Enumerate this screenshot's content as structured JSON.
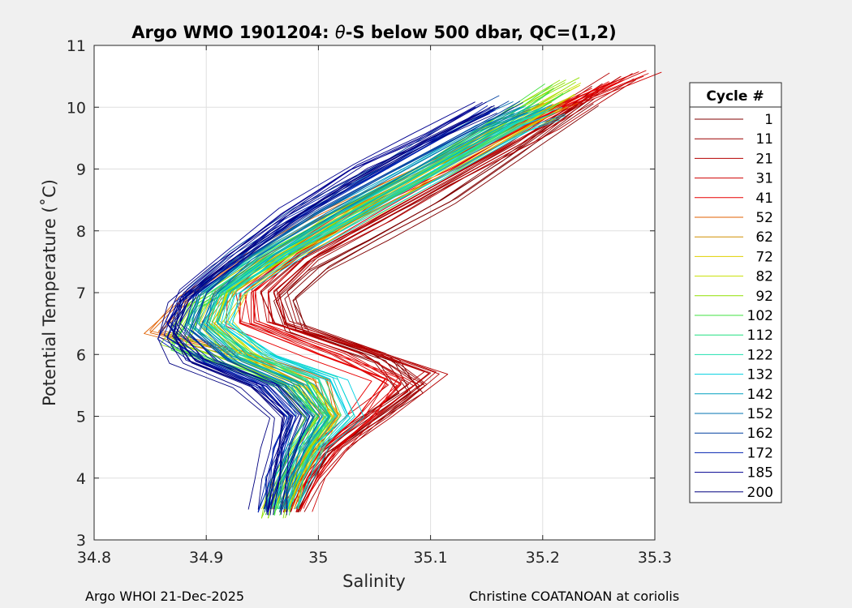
{
  "chart_data": {
    "type": "line",
    "title_prefix": "Argo WMO 1901204: ",
    "title_theta": "θ",
    "title_suffix": "-S below 500 dbar,  QC=(1,2)",
    "xlabel": "Salinity",
    "ylabel": "Potential Temperature (˚C)",
    "xlim": [
      34.8,
      35.3
    ],
    "ylim": [
      3,
      11
    ],
    "xticks": [
      "34.8",
      "34.9",
      "35",
      "35.1",
      "35.2",
      "35.3"
    ],
    "yticks": [
      "3",
      "4",
      "5",
      "6",
      "7",
      "8",
      "9",
      "10",
      "11"
    ],
    "grid": true,
    "legend_title": "Cycle #",
    "legend_position": "right",
    "series": [
      {
        "name": "1",
        "color": "#800000",
        "values": [
          [
            34.975,
            3.45
          ],
          [
            34.985,
            3.9
          ],
          [
            35.0,
            4.4
          ],
          [
            35.04,
            4.9
          ],
          [
            35.08,
            5.4
          ],
          [
            35.06,
            5.9
          ],
          [
            34.98,
            6.4
          ],
          [
            34.97,
            6.9
          ],
          [
            35.0,
            7.4
          ],
          [
            35.05,
            7.9
          ],
          [
            35.11,
            8.5
          ],
          [
            35.17,
            9.2
          ],
          [
            35.24,
            10.1
          ]
        ]
      },
      {
        "name": "11",
        "color": "#9b0000",
        "values": [
          [
            34.98,
            3.45
          ],
          [
            34.99,
            3.9
          ],
          [
            35.01,
            4.4
          ],
          [
            35.045,
            4.9
          ],
          [
            35.09,
            5.5
          ],
          [
            35.05,
            6.0
          ],
          [
            34.97,
            6.5
          ],
          [
            34.96,
            7.0
          ],
          [
            34.99,
            7.5
          ],
          [
            35.05,
            8.1
          ],
          [
            35.11,
            8.7
          ],
          [
            35.18,
            9.4
          ],
          [
            35.25,
            10.3
          ]
        ]
      },
      {
        "name": "21",
        "color": "#b50000",
        "values": [
          [
            34.975,
            3.5
          ],
          [
            34.99,
            4.0
          ],
          [
            35.015,
            4.5
          ],
          [
            35.05,
            5.0
          ],
          [
            35.1,
            5.7
          ],
          [
            35.04,
            6.1
          ],
          [
            34.96,
            6.5
          ],
          [
            34.955,
            7.0
          ],
          [
            34.99,
            7.6
          ],
          [
            35.05,
            8.2
          ],
          [
            35.12,
            8.9
          ],
          [
            35.2,
            9.7
          ],
          [
            35.27,
            10.5
          ]
        ]
      },
      {
        "name": "31",
        "color": "#d00000",
        "values": [
          [
            34.98,
            3.45
          ],
          [
            34.99,
            4.0
          ],
          [
            35.01,
            4.5
          ],
          [
            35.04,
            5.0
          ],
          [
            35.07,
            5.5
          ],
          [
            35.02,
            6.0
          ],
          [
            34.94,
            6.5
          ],
          [
            34.94,
            7.0
          ],
          [
            34.98,
            7.6
          ],
          [
            35.04,
            8.3
          ],
          [
            35.12,
            9.1
          ],
          [
            35.21,
            9.9
          ],
          [
            35.29,
            10.5
          ]
        ]
      },
      {
        "name": "41",
        "color": "#e80000",
        "values": [
          [
            34.97,
            3.5
          ],
          [
            34.985,
            4.0
          ],
          [
            35.005,
            4.5
          ],
          [
            35.035,
            5.0
          ],
          [
            35.06,
            5.6
          ],
          [
            35.0,
            6.0
          ],
          [
            34.93,
            6.5
          ],
          [
            34.93,
            7.0
          ],
          [
            34.97,
            7.6
          ],
          [
            35.03,
            8.3
          ],
          [
            35.11,
            9.0
          ],
          [
            35.19,
            9.8
          ],
          [
            35.26,
            10.4
          ]
        ]
      },
      {
        "name": "52",
        "color": "#e06000",
        "values": [
          [
            34.97,
            3.5
          ],
          [
            34.975,
            4.0
          ],
          [
            34.99,
            4.5
          ],
          [
            35.01,
            5.0
          ],
          [
            35.0,
            5.6
          ],
          [
            34.93,
            6.0
          ],
          [
            34.85,
            6.35
          ],
          [
            34.88,
            6.9
          ],
          [
            34.93,
            7.5
          ],
          [
            35.0,
            8.2
          ],
          [
            35.08,
            8.9
          ],
          [
            35.16,
            9.6
          ],
          [
            35.22,
            10.1
          ]
        ]
      },
      {
        "name": "62",
        "color": "#d09000",
        "values": [
          [
            34.965,
            3.5
          ],
          [
            34.975,
            4.0
          ],
          [
            34.99,
            4.5
          ],
          [
            35.01,
            5.0
          ],
          [
            34.99,
            5.5
          ],
          [
            34.93,
            6.0
          ],
          [
            34.9,
            6.5
          ],
          [
            34.92,
            7.0
          ],
          [
            34.97,
            7.6
          ],
          [
            35.04,
            8.3
          ],
          [
            35.11,
            9.0
          ],
          [
            35.18,
            9.7
          ],
          [
            35.21,
            10.0
          ]
        ]
      },
      {
        "name": "72",
        "color": "#e0d000",
        "values": [
          [
            34.965,
            3.5
          ],
          [
            34.975,
            4.0
          ],
          [
            34.99,
            4.5
          ],
          [
            35.005,
            5.0
          ],
          [
            34.98,
            5.5
          ],
          [
            34.93,
            6.0
          ],
          [
            34.905,
            6.5
          ],
          [
            34.92,
            7.0
          ],
          [
            34.97,
            7.6
          ],
          [
            35.03,
            8.2
          ],
          [
            35.1,
            8.9
          ],
          [
            35.17,
            9.6
          ],
          [
            35.2,
            9.9
          ]
        ]
      },
      {
        "name": "82",
        "color": "#c8e000",
        "values": [
          [
            34.96,
            3.45
          ],
          [
            34.97,
            4.0
          ],
          [
            34.985,
            4.5
          ],
          [
            35.0,
            5.0
          ],
          [
            34.98,
            5.5
          ],
          [
            34.93,
            6.0
          ],
          [
            34.9,
            6.5
          ],
          [
            34.91,
            7.0
          ],
          [
            34.96,
            7.6
          ],
          [
            35.02,
            8.3
          ],
          [
            35.09,
            9.0
          ],
          [
            35.17,
            9.8
          ],
          [
            35.22,
            10.3
          ]
        ]
      },
      {
        "name": "92",
        "color": "#90e000",
        "values": [
          [
            34.955,
            3.35
          ],
          [
            34.965,
            3.9
          ],
          [
            34.98,
            4.5
          ],
          [
            35.0,
            5.0
          ],
          [
            34.97,
            5.5
          ],
          [
            34.92,
            5.9
          ],
          [
            34.87,
            6.2
          ],
          [
            34.89,
            6.8
          ],
          [
            34.95,
            7.5
          ],
          [
            35.02,
            8.3
          ],
          [
            35.1,
            9.1
          ],
          [
            35.17,
            9.9
          ],
          [
            35.22,
            10.4
          ]
        ]
      },
      {
        "name": "102",
        "color": "#40e040",
        "values": [
          [
            34.96,
            3.4
          ],
          [
            34.97,
            3.9
          ],
          [
            34.985,
            4.5
          ],
          [
            35.0,
            5.0
          ],
          [
            34.97,
            5.5
          ],
          [
            34.91,
            5.85
          ],
          [
            34.87,
            6.1
          ],
          [
            34.89,
            6.8
          ],
          [
            34.95,
            7.5
          ],
          [
            35.03,
            8.3
          ],
          [
            35.1,
            9.0
          ],
          [
            35.17,
            9.8
          ],
          [
            35.21,
            10.3
          ]
        ]
      },
      {
        "name": "112",
        "color": "#20e080",
        "values": [
          [
            34.965,
            3.5
          ],
          [
            34.975,
            4.0
          ],
          [
            34.99,
            4.5
          ],
          [
            35.01,
            5.0
          ],
          [
            34.99,
            5.6
          ],
          [
            34.94,
            6.0
          ],
          [
            34.9,
            6.5
          ],
          [
            34.91,
            7.0
          ],
          [
            34.96,
            7.6
          ],
          [
            35.03,
            8.3
          ],
          [
            35.1,
            9.0
          ],
          [
            35.17,
            9.7
          ],
          [
            35.2,
            10.0
          ]
        ]
      },
      {
        "name": "122",
        "color": "#20e0b0",
        "values": [
          [
            34.965,
            3.5
          ],
          [
            34.975,
            4.0
          ],
          [
            34.99,
            4.5
          ],
          [
            35.015,
            5.0
          ],
          [
            35.0,
            5.6
          ],
          [
            34.94,
            6.0
          ],
          [
            34.905,
            6.5
          ],
          [
            34.915,
            7.0
          ],
          [
            34.96,
            7.6
          ],
          [
            35.03,
            8.3
          ],
          [
            35.1,
            9.0
          ],
          [
            35.17,
            9.7
          ],
          [
            35.2,
            9.9
          ]
        ]
      },
      {
        "name": "132",
        "color": "#00d0e0",
        "values": [
          [
            34.97,
            3.5
          ],
          [
            34.98,
            4.0
          ],
          [
            34.995,
            4.5
          ],
          [
            35.025,
            5.0
          ],
          [
            35.01,
            5.6
          ],
          [
            34.95,
            6.0
          ],
          [
            34.91,
            6.5
          ],
          [
            34.92,
            7.0
          ],
          [
            34.97,
            7.6
          ],
          [
            35.04,
            8.3
          ],
          [
            35.11,
            9.0
          ],
          [
            35.18,
            9.7
          ],
          [
            35.21,
            9.9
          ]
        ]
      },
      {
        "name": "142",
        "color": "#00a0c0",
        "values": [
          [
            34.965,
            3.5
          ],
          [
            34.975,
            4.0
          ],
          [
            34.99,
            4.5
          ],
          [
            35.01,
            5.0
          ],
          [
            34.99,
            5.5
          ],
          [
            34.93,
            5.95
          ],
          [
            34.9,
            6.5
          ],
          [
            34.91,
            7.0
          ],
          [
            34.955,
            7.6
          ],
          [
            35.02,
            8.3
          ],
          [
            35.09,
            9.0
          ],
          [
            35.16,
            9.7
          ],
          [
            35.2,
            10.0
          ]
        ]
      },
      {
        "name": "152",
        "color": "#0070b0",
        "values": [
          [
            34.96,
            3.5
          ],
          [
            34.97,
            4.0
          ],
          [
            34.98,
            4.5
          ],
          [
            34.99,
            5.0
          ],
          [
            34.97,
            5.5
          ],
          [
            34.92,
            5.9
          ],
          [
            34.89,
            6.4
          ],
          [
            34.9,
            7.0
          ],
          [
            34.94,
            7.6
          ],
          [
            35.0,
            8.3
          ],
          [
            35.07,
            9.0
          ],
          [
            35.14,
            9.7
          ],
          [
            35.18,
            10.0
          ]
        ]
      },
      {
        "name": "162",
        "color": "#0040a0",
        "values": [
          [
            34.96,
            3.45
          ],
          [
            34.965,
            4.0
          ],
          [
            34.975,
            4.5
          ],
          [
            34.985,
            5.0
          ],
          [
            34.96,
            5.5
          ],
          [
            34.91,
            5.9
          ],
          [
            34.88,
            6.4
          ],
          [
            34.89,
            7.0
          ],
          [
            34.93,
            7.6
          ],
          [
            34.99,
            8.3
          ],
          [
            35.06,
            9.0
          ],
          [
            35.13,
            9.7
          ],
          [
            35.17,
            10.1
          ]
        ]
      },
      {
        "name": "172",
        "color": "#0020b0",
        "values": [
          [
            34.955,
            3.45
          ],
          [
            34.965,
            4.0
          ],
          [
            34.97,
            4.5
          ],
          [
            34.98,
            5.0
          ],
          [
            34.955,
            5.5
          ],
          [
            34.9,
            5.9
          ],
          [
            34.87,
            6.3
          ],
          [
            34.885,
            6.9
          ],
          [
            34.93,
            7.5
          ],
          [
            34.98,
            8.2
          ],
          [
            35.05,
            8.9
          ],
          [
            35.12,
            9.6
          ],
          [
            35.16,
            10.0
          ]
        ]
      },
      {
        "name": "185",
        "color": "#000090",
        "values": [
          [
            34.955,
            3.4
          ],
          [
            34.96,
            4.0
          ],
          [
            34.965,
            4.5
          ],
          [
            34.975,
            5.0
          ],
          [
            34.95,
            5.5
          ],
          [
            34.89,
            5.9
          ],
          [
            34.865,
            6.5
          ],
          [
            34.88,
            7.0
          ],
          [
            34.92,
            7.6
          ],
          [
            34.97,
            8.3
          ],
          [
            35.03,
            9.0
          ],
          [
            35.09,
            9.5
          ],
          [
            35.14,
            10.0
          ]
        ]
      },
      {
        "name": "200",
        "color": "#000080",
        "values": [
          [
            34.955,
            3.5
          ],
          [
            34.96,
            4.0
          ],
          [
            34.965,
            4.5
          ],
          [
            34.97,
            5.0
          ],
          [
            34.94,
            5.5
          ],
          [
            34.885,
            5.9
          ],
          [
            34.87,
            6.3
          ],
          [
            34.88,
            6.9
          ],
          [
            34.92,
            7.5
          ],
          [
            34.97,
            8.1
          ],
          [
            35.03,
            8.8
          ],
          [
            35.1,
            9.5
          ],
          [
            35.16,
            10.0
          ]
        ]
      }
    ]
  },
  "footer": {
    "left": "Argo WHOI 21-Dec-2025",
    "right": "Christine COATANOAN at coriolis"
  }
}
